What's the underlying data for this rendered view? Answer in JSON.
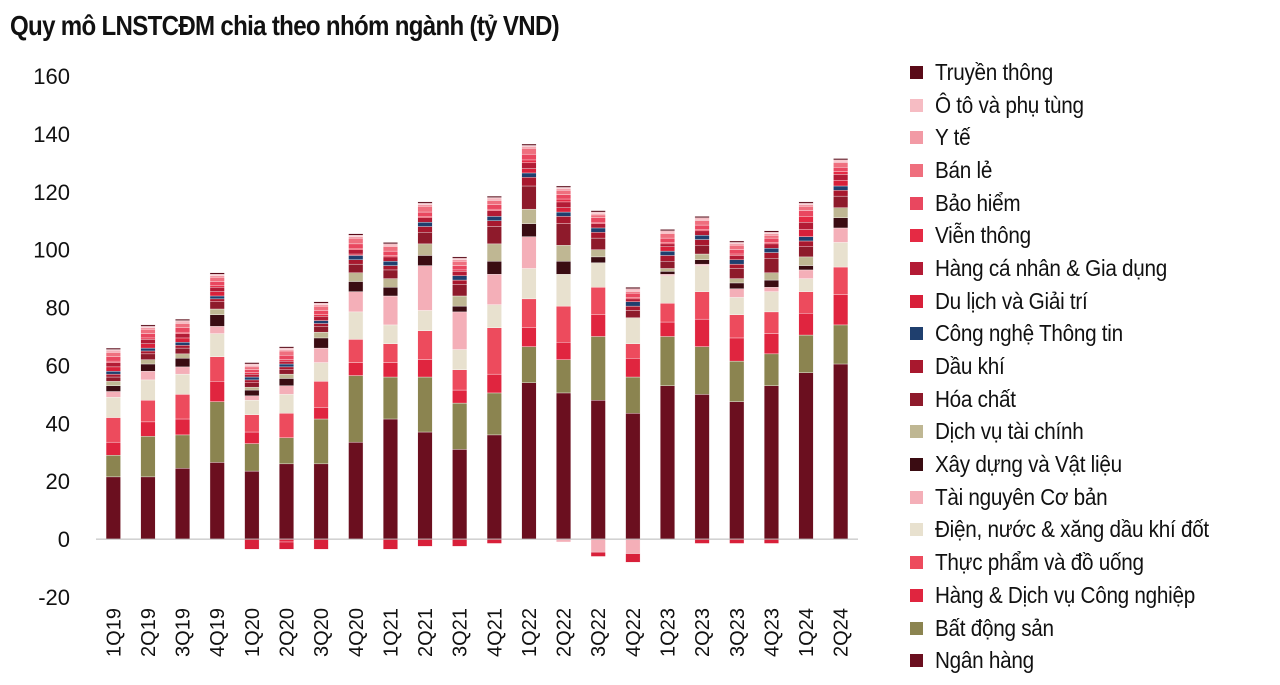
{
  "title": "Quy mô LNSTCĐM chia theo nhóm ngành (tỷ VND)",
  "chart_data": {
    "type": "bar",
    "stacked": true,
    "title": "Quy mô LNSTCĐM chia theo nhóm ngành (tỷ VND)",
    "categories": [
      "1Q19",
      "2Q19",
      "3Q19",
      "4Q19",
      "1Q20",
      "2Q20",
      "3Q20",
      "4Q20",
      "1Q21",
      "2Q21",
      "3Q21",
      "4Q21",
      "1Q22",
      "2Q22",
      "3Q22",
      "4Q22",
      "1Q23",
      "2Q23",
      "3Q23",
      "4Q23",
      "1Q24",
      "2Q24"
    ],
    "ylim": [
      -20,
      160
    ],
    "yticks": [
      -20,
      0,
      20,
      40,
      60,
      80,
      100,
      120,
      140,
      160
    ],
    "grid": false,
    "legend_position": "right",
    "series": [
      {
        "name": "Ngân hàng",
        "color": "#6b0f1f",
        "values": [
          21.5,
          21.5,
          24.5,
          26.5,
          23.5,
          26,
          26,
          33.5,
          41.5,
          37,
          31,
          36,
          54,
          50.5,
          48,
          43.5,
          53,
          50,
          47.5,
          53,
          57.5,
          60.5
        ]
      },
      {
        "name": "Bất động sản",
        "color": "#8b8450",
        "values": [
          7.5,
          14,
          11.5,
          21,
          9.5,
          9,
          15.5,
          23,
          14.5,
          19,
          16,
          14.5,
          12.5,
          11.5,
          22,
          12.5,
          17,
          16.5,
          14,
          11,
          13,
          13.5
        ]
      },
      {
        "name": "Hàng & Dịch vụ Công nghiệp",
        "color": "#e0253f",
        "values": [
          4.5,
          5,
          5.5,
          7,
          4,
          -1,
          4,
          4.5,
          5,
          6,
          4.5,
          6.5,
          6.5,
          6,
          7.5,
          6.5,
          5,
          9.5,
          8,
          7,
          7.5,
          10.5
        ]
      },
      {
        "name": "Thực phẩm và đồ uống",
        "color": "#ed4b5d",
        "values": [
          8.5,
          7.5,
          8.5,
          8.5,
          6,
          8.5,
          9,
          8,
          6.5,
          10,
          7,
          16,
          10,
          12.5,
          9.5,
          5,
          6.5,
          9.5,
          8,
          7.5,
          7.5,
          9.5
        ]
      },
      {
        "name": "Điện, nước & xăng dầu khí đốt",
        "color": "#e8e1cf",
        "values": [
          7,
          7,
          7,
          8,
          5,
          6.5,
          6.5,
          9.5,
          6.5,
          7,
          7,
          8,
          10.5,
          11,
          8.5,
          9,
          9.5,
          9,
          6,
          7,
          4.5,
          8.5
        ]
      },
      {
        "name": "Tài nguyên Cơ bản",
        "color": "#f4afb8",
        "values": [
          2,
          3,
          2.5,
          2.5,
          1.5,
          3,
          5,
          7,
          10,
          15.5,
          13,
          10.5,
          11,
          -1,
          -4.5,
          -5,
          0.5,
          0.5,
          3,
          1.5,
          3,
          5
        ]
      },
      {
        "name": "Xây dựng và Vật liệu",
        "color": "#3a0c12",
        "values": [
          2,
          2.5,
          3,
          4,
          2,
          2.5,
          3.5,
          3.5,
          3,
          3.5,
          2,
          4.5,
          4.5,
          4.5,
          2,
          0,
          1,
          1.5,
          2,
          2.5,
          1.5,
          3.5
        ]
      },
      {
        "name": "Dịch vụ tài chính",
        "color": "#bfb793",
        "values": [
          1.5,
          1.5,
          1.5,
          2,
          1,
          1.5,
          2,
          3,
          3,
          4,
          3.5,
          6,
          5,
          5.5,
          2.5,
          0,
          1,
          2,
          1.5,
          2.5,
          3,
          3.5
        ]
      },
      {
        "name": "Hóa chất",
        "color": "#8e1a2b",
        "values": [
          1.5,
          2,
          2,
          2.5,
          1.5,
          1.5,
          2,
          3,
          3,
          4,
          4,
          6,
          8,
          7.5,
          4,
          2.5,
          2.5,
          3,
          3.5,
          5,
          3.5,
          4
        ]
      },
      {
        "name": "Dầu khí",
        "color": "#a8182e",
        "values": [
          1,
          1,
          1,
          1,
          1,
          1,
          1,
          1.5,
          1.5,
          2,
          1.5,
          2,
          3,
          2.5,
          2,
          1.5,
          2,
          2,
          1.5,
          2,
          2,
          2
        ]
      },
      {
        "name": "Công nghệ Thông tin",
        "color": "#1f3f6e",
        "values": [
          1,
          1,
          1,
          1,
          1,
          1,
          1,
          1.5,
          1.5,
          1.5,
          1.5,
          1.5,
          1.5,
          1.5,
          1.5,
          1.5,
          1.5,
          1.5,
          1.5,
          1.5,
          1.5,
          1.5
        ]
      },
      {
        "name": "Du lịch và Giải trí",
        "color": "#d8203a",
        "values": [
          1.5,
          1.5,
          1.5,
          1.5,
          -3.5,
          -2.5,
          -3.5,
          0.5,
          -3.5,
          -2.5,
          -2.5,
          -1.5,
          1.5,
          1.5,
          -1.5,
          -3,
          1.5,
          -1.5,
          -1.5,
          -1.5,
          2.5,
          2
        ]
      },
      {
        "name": "Hàng cá nhân & Gia dụng",
        "color": "#b31b35",
        "values": [
          1.5,
          1.5,
          1.5,
          1.5,
          1,
          1,
          1.5,
          1.5,
          1.5,
          1.5,
          1.5,
          2,
          2,
          2,
          1.5,
          1,
          1,
          1.5,
          1.5,
          1.5,
          2.5,
          2
        ]
      },
      {
        "name": "Viễn thông",
        "color": "#e52a44",
        "values": [
          0.5,
          0.5,
          0.5,
          0.5,
          0.5,
          0.5,
          0.5,
          0.5,
          0.5,
          0.5,
          0.5,
          0.5,
          1,
          1,
          0.5,
          0.5,
          0.5,
          0.5,
          0.5,
          0.5,
          2,
          1
        ]
      },
      {
        "name": "Bảo hiểm",
        "color": "#e9475f",
        "values": [
          1.5,
          1.5,
          1.5,
          1.5,
          1,
          1.5,
          1.5,
          1.5,
          1.5,
          1.5,
          1.5,
          1.5,
          2,
          1.5,
          1.5,
          1.5,
          1.5,
          1.5,
          1.5,
          1.5,
          2,
          1.5
        ]
      },
      {
        "name": "Bán lẻ",
        "color": "#ef6f7e",
        "values": [
          1.5,
          1.5,
          1.5,
          1.5,
          1,
          1.5,
          1.5,
          2,
          1.5,
          2,
          1.5,
          1.5,
          2,
          1.5,
          1,
          0.5,
          1.5,
          1.5,
          1.5,
          1,
          1.5,
          1.5
        ]
      },
      {
        "name": "Y tế",
        "color": "#f29aa5",
        "values": [
          0.5,
          0.5,
          0.5,
          0.5,
          0.5,
          0.5,
          0.5,
          0.5,
          0.5,
          0.5,
          0.5,
          0.5,
          0.5,
          0.5,
          0.5,
          0.5,
          0.5,
          0.5,
          0.5,
          0.5,
          0.5,
          0.5
        ]
      },
      {
        "name": "Ô tô và phụ tùng",
        "color": "#f6bcc3",
        "values": [
          0.5,
          0.5,
          0.5,
          0.5,
          0.5,
          0.5,
          0.5,
          0.5,
          0.5,
          0.5,
          0.5,
          0.5,
          0.5,
          0.5,
          0.5,
          0.5,
          0.5,
          0.5,
          0.5,
          0.5,
          0.5,
          0.5
        ]
      },
      {
        "name": "Truyền thông",
        "color": "#5a0a18",
        "values": [
          0.5,
          0.5,
          0.5,
          0.5,
          0.5,
          0.5,
          0.5,
          0.5,
          0.5,
          0.5,
          0.5,
          0.5,
          0.5,
          0.5,
          0.5,
          0.5,
          0.5,
          0.5,
          0.5,
          0.5,
          0.5,
          0.5
        ]
      }
    ]
  }
}
